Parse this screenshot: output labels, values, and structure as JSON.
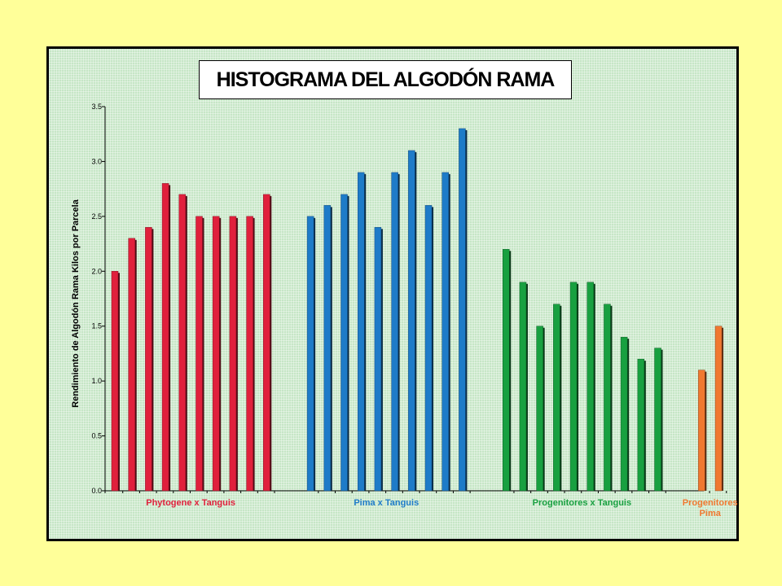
{
  "title": "HISTOGRAMA DEL ALGODÓN RAMA",
  "chart_data": {
    "type": "bar",
    "title": "HISTOGRAMA DEL ALGODÓN RAMA",
    "ylabel": "Rendimiento de Algodón Rama Kilos por Parcela",
    "xlabel": "",
    "ylim": [
      0,
      3.5
    ],
    "yticks": [
      "0.0",
      "0.5",
      "1.0",
      "1.5",
      "2.0",
      "2.5",
      "3.0",
      "3.5"
    ],
    "grid": false,
    "groups": [
      {
        "label": "Phytogene x Tanguis",
        "color": "#E0203C",
        "values": [
          2.0,
          2.3,
          2.4,
          2.8,
          2.7,
          2.5,
          2.5,
          2.5,
          2.5,
          2.7
        ]
      },
      {
        "label": "Pima x Tanguis",
        "color": "#1E7BC8",
        "values": [
          2.5,
          2.6,
          2.7,
          2.9,
          2.4,
          2.9,
          3.1,
          2.6,
          2.9,
          3.3
        ]
      },
      {
        "label": "Progenitores  x Tanguis",
        "color": "#18A040",
        "values": [
          2.2,
          1.9,
          1.5,
          1.7,
          1.9,
          1.9,
          1.7,
          1.4,
          1.2,
          1.3
        ]
      },
      {
        "label": "Progenitores\nPima",
        "color": "#F07830",
        "values": [
          1.1,
          1.5
        ]
      }
    ]
  }
}
